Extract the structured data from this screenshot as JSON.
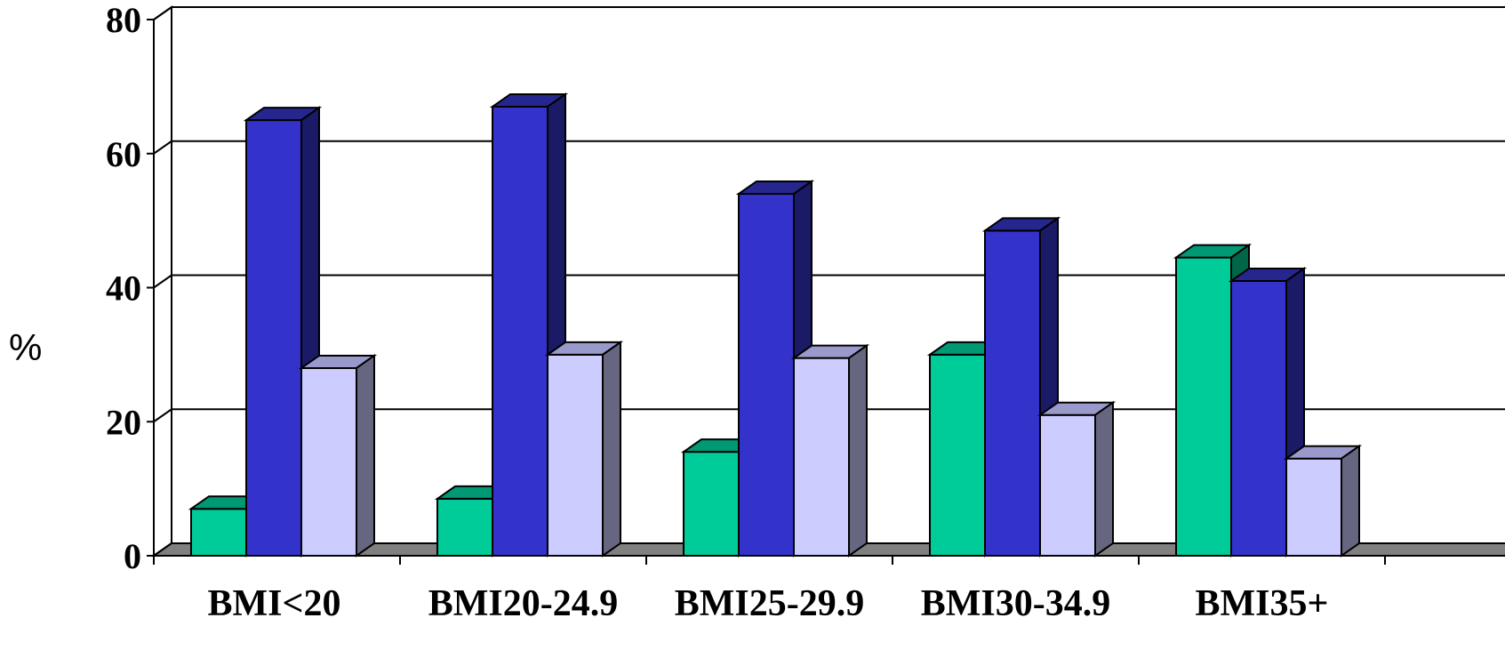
{
  "chart_data": {
    "type": "bar",
    "categories": [
      "BMI<20",
      "BMI20-24.9",
      "BMI25-29.9",
      "BMI30-34.9",
      "BMI35+"
    ],
    "series": [
      {
        "values": [
          7,
          8.5,
          15.5,
          30,
          44.5
        ],
        "color": "#00CC99",
        "top_color": "#009973",
        "side_color": "#006648"
      },
      {
        "values": [
          65,
          67,
          54,
          48.5,
          41
        ],
        "color": "#3333CC",
        "top_color": "#26268F",
        "side_color": "#1A1A66"
      },
      {
        "values": [
          28,
          30,
          29.5,
          21,
          14.5
        ],
        "color": "#CCCCFF",
        "top_color": "#9999CC",
        "side_color": "#666680"
      }
    ],
    "xlabel": "",
    "ylabel": "%",
    "ylim": [
      0,
      80
    ],
    "yticks": [
      "0",
      "20",
      "40",
      "60",
      "80"
    ],
    "grid": true,
    "legend": "none",
    "floor_color": "#808080",
    "style": "3d"
  }
}
